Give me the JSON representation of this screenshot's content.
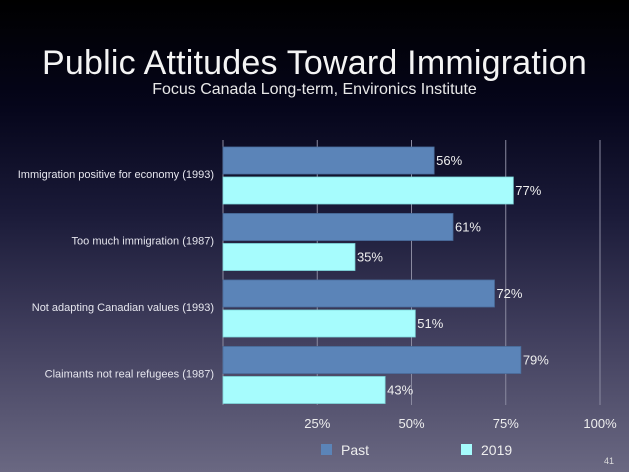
{
  "slide": {
    "title": "Public Attitudes Toward Immigration",
    "subtitle": "Focus Canada Long-term, Environics Institute",
    "page_number": "41"
  },
  "colors": {
    "past": "#5b84b8",
    "y2019": "#a6fcfd",
    "gridline": "#8a8aa0"
  },
  "chart_data": {
    "type": "bar",
    "orientation": "horizontal",
    "title": "Public Attitudes Toward Immigration",
    "subtitle": "Focus Canada Long-term, Environics Institute",
    "categories": [
      "Immigration positive for economy (1993)",
      "Too much immigration (1987)",
      "Not adapting Canadian values (1993)",
      "Claimants not real refugees (1987)"
    ],
    "series": [
      {
        "name": "Past",
        "values": [
          56,
          61,
          72,
          79
        ],
        "color": "#5b84b8"
      },
      {
        "name": "2019",
        "values": [
          77,
          35,
          51,
          43
        ],
        "color": "#a6fcfd"
      }
    ],
    "value_labels": {
      "Past": [
        "56%",
        "61%",
        "72%",
        "79%"
      ],
      "2019": [
        "77%",
        "35%",
        "51%",
        "43%"
      ]
    },
    "xlim": [
      0,
      100
    ],
    "xticks": [
      25,
      50,
      75,
      100
    ],
    "xtick_labels": [
      "25%",
      "50%",
      "75%",
      "100%"
    ],
    "xlabel": "",
    "ylabel": "",
    "grid": true,
    "legend": {
      "position": "bottom-center",
      "entries": [
        "Past",
        "2019"
      ]
    }
  }
}
